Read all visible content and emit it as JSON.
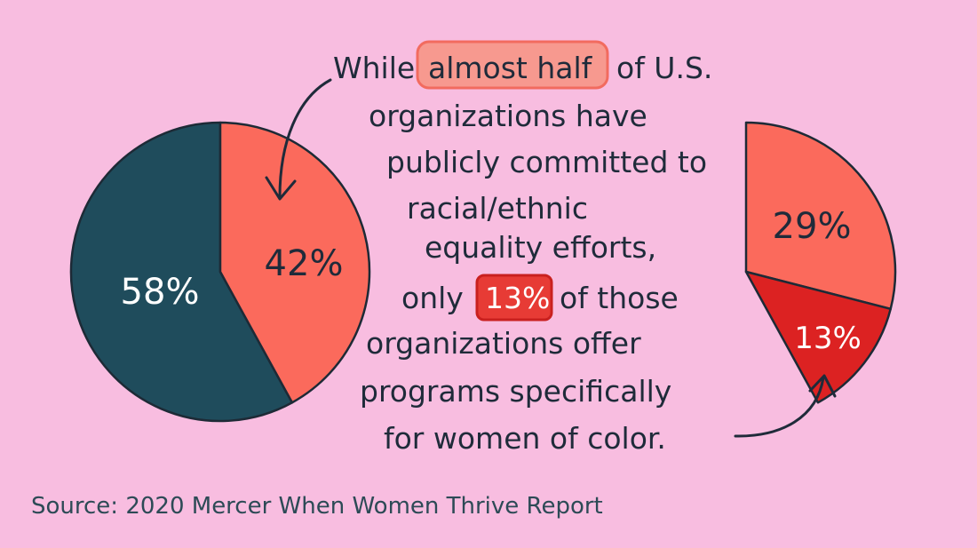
{
  "colors": {
    "background": "#f8bde0",
    "teal": "#1f4c5c",
    "coral": "#fb6a5c",
    "red": "#dc2222",
    "ink": "#1f2b3a",
    "outline": "#1d2a36",
    "highlight_pink": "#f7998f",
    "highlight_red": "#e73b35",
    "source_ink": "#2d4a56"
  },
  "chart_data": [
    {
      "type": "pie",
      "slices": [
        {
          "label": "58%",
          "value": 58
        },
        {
          "label": "42%",
          "value": 42
        }
      ]
    },
    {
      "type": "pie",
      "slices": [
        {
          "label": "29%",
          "value": 29
        },
        {
          "label": "13%",
          "value": 13
        }
      ]
    }
  ],
  "text": {
    "line1_pre": "While",
    "line1_highlight": "almost half",
    "line1_post": "of U.S.",
    "line2": "organizations have",
    "line3": "publicly committed to",
    "line4": "racial/ethnic",
    "line5": "equality efforts,",
    "line6_pre": "only",
    "line6_highlight": "13%",
    "line6_post": "of those",
    "line7": "organizations offer",
    "line8": "programs specifically",
    "line9": "for women of color."
  },
  "source": "Source: 2020 Mercer When Women Thrive Report",
  "icons": [
    "curved-arrow-icon",
    "curved-arrow-icon"
  ]
}
